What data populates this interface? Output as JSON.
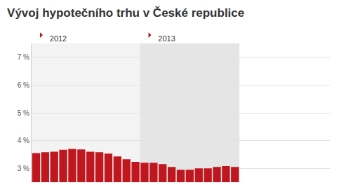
{
  "chart_data": {
    "type": "bar",
    "title": "Vývoj hypotečního trhu v České republice",
    "categories": [
      "2012",
      null,
      null,
      null,
      null,
      null,
      null,
      null,
      null,
      null,
      null,
      null,
      "2013",
      null,
      null,
      null,
      null,
      null,
      null,
      null,
      null,
      null,
      null
    ],
    "values": [
      3.55,
      3.58,
      3.6,
      3.67,
      3.7,
      3.68,
      3.6,
      3.58,
      3.53,
      3.43,
      3.33,
      3.23,
      3.2,
      3.2,
      3.15,
      3.05,
      2.95,
      2.95,
      3.0,
      3.0,
      3.05,
      3.08,
      3.05
    ],
    "color": "#c0161e",
    "ylim": [
      2.5,
      7.5
    ],
    "yticks": [
      {
        "value": 3,
        "label": "3 %"
      },
      {
        "value": 4,
        "label": "4 %"
      },
      {
        "value": 5,
        "label": "5 %"
      },
      {
        "value": 6,
        "label": "6 %"
      },
      {
        "value": 7,
        "label": "7 %"
      }
    ],
    "grid": true
  }
}
